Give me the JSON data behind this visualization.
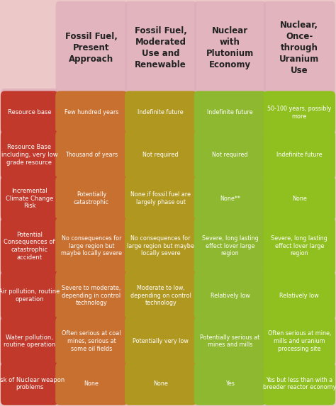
{
  "background_color": "#edc8c8",
  "col_strip_color": "#dbaaba",
  "row_labels": [
    "Resource base",
    "Resource Base\nincluding, very low\ngrade resource",
    "Incremental\nClimate Change\nRisk",
    "Potential\nConsequences of\ncatastrophic\naccident",
    "Air pollution, routine\noperation",
    "Water pollution,\nroutine operation",
    "Risk of Nuclear weapon\nproblems"
  ],
  "col_headers": [
    "Fossil Fuel,\nPresent\nApproach",
    "Fossil Fuel,\nModerated\nUse and\nRenewable",
    "Nuclear\nwith\nPlutonium\nEconomy",
    "Nuclear,\nOnce-\nthrough\nUranium\nUse"
  ],
  "row_label_color": "#c0392b",
  "row_label_grad": "#d45030",
  "row_label_text_color": "#ffffff",
  "col_colors": [
    "#c87030",
    "#b09820",
    "#8db830",
    "#90c020"
  ],
  "col_text_color": "#ffffff",
  "header_text_color": "#222222",
  "col1_values": [
    "Few hundred years",
    "Thousand of years",
    "Potentially\ncatastrophic",
    "No consequences for\nlarge region but\nmaybe locally severe",
    "Severe to moderate,\ndepending in control\ntechnology",
    "Often serious at coal\nmines, serious at\nsome oil fields",
    "None"
  ],
  "col2_values": [
    "Indefinite future",
    "Not required",
    "None if fossil fuel are\nlargely phase out",
    "No consequences for\nlarge region but maybe\nlocally severe",
    "Moderate to low,\ndepending on control\ntechnology",
    "Potentially very low",
    "None"
  ],
  "col3_values": [
    "Indefinite future",
    "Not required",
    "None**",
    "Severe, long lasting\neffect lover large\nregion",
    "Relatively low",
    "Potentially serious at\nmines and mills",
    "Yes"
  ],
  "col4_values": [
    "50-100 years, possibly\nmore",
    "Indefinite future",
    "None",
    "Severe, long lasting\neffect lover large\nregion",
    "Relatively low",
    "Often serious at mine,\nmills and uranium\nprocessing site",
    "Yes but less than with a\nbreeder reactor economy"
  ],
  "figsize": [
    4.74,
    5.73
  ],
  "dpi": 100
}
